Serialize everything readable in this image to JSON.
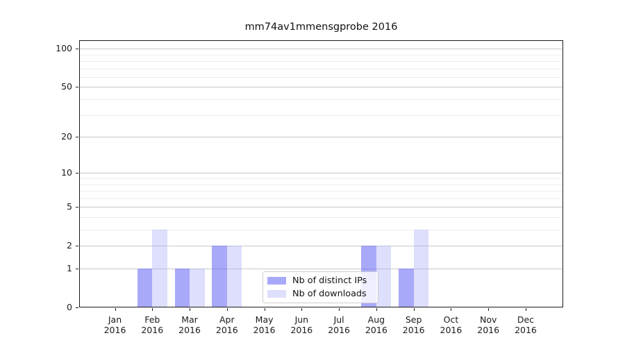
{
  "title": "mm74av1mmensgprobe 2016",
  "legend": {
    "entries": [
      "Nb of distinct IPs",
      "Nb of downloads"
    ]
  },
  "colors": {
    "distinct_ips_bar": "rgba(98,98,245,0.55)",
    "downloads_bar": "rgba(160,160,250,0.35)",
    "distinct_ips_solid": "#a9a9f9",
    "downloads_solid": "#dedefd",
    "grid_major": "#c9c9c9",
    "grid_minor": "#ececec",
    "axis": "#1a1a1a"
  },
  "chart_data": {
    "type": "bar",
    "title": "mm74av1mmensgprobe 2016",
    "categories": [
      "Jan",
      "Feb",
      "Mar",
      "Apr",
      "May",
      "Jun",
      "Jul",
      "Aug",
      "Sep",
      "Oct",
      "Nov",
      "Dec"
    ],
    "category_year": "2016",
    "series": [
      {
        "name": "Nb of distinct IPs",
        "color": "rgba(98,98,245,0.55)",
        "values": [
          0,
          1,
          1,
          2,
          0,
          0,
          0,
          2,
          1,
          0,
          0,
          0
        ]
      },
      {
        "name": "Nb of downloads",
        "color": "rgba(160,160,250,0.35)",
        "values": [
          0,
          3,
          1,
          2,
          0,
          0,
          0,
          2,
          3,
          0,
          0,
          0
        ]
      }
    ],
    "xlabel": "",
    "ylabel": "",
    "yscale": "log1p",
    "yticks": [
      0,
      1,
      2,
      5,
      10,
      20,
      50,
      100
    ],
    "yticks_minor": [
      3,
      4,
      6,
      7,
      8,
      9,
      30,
      40,
      60,
      70,
      80,
      90
    ],
    "ylim": [
      0,
      118
    ],
    "grid": true,
    "legend_position": "lower-center-inside"
  }
}
